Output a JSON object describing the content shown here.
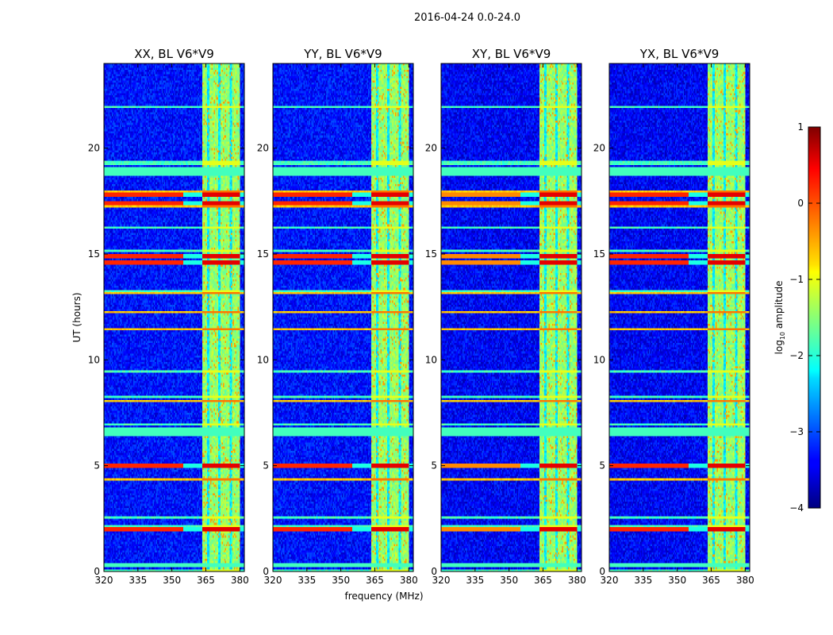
{
  "chart_data": {
    "type": "heatmap",
    "title": "2016-04-24 0.0-24.0",
    "xlabel": "frequency (MHz)",
    "ylabel": "UT (hours)",
    "xlim": [
      320,
      382
    ],
    "ylim": [
      0,
      24
    ],
    "x_ticks": [
      320,
      335,
      350,
      365,
      380
    ],
    "y_ticks": [
      0,
      5,
      10,
      15,
      20
    ],
    "panels": [
      {
        "title": "XX, BL V6*V9"
      },
      {
        "title": "YY, BL V6*V9"
      },
      {
        "title": "XY, BL V6*V9"
      },
      {
        "title": "YX, BL V6*V9"
      }
    ],
    "colorbar": {
      "label": "log",
      "label_sub": "10",
      "label_tail": " amplitude",
      "range": [
        -4,
        1
      ],
      "ticks": [
        1,
        0,
        -1,
        -2,
        -3,
        -4
      ],
      "tick_labels": [
        "1",
        "0",
        "−1",
        "−2",
        "−3",
        "−4"
      ]
    },
    "features": {
      "rfi_band_mhz": [
        363.5,
        380
      ],
      "rfi_band_columns_mhz": [
        366,
        371,
        376
      ],
      "strong_time_hours": [
        17.4,
        17.8,
        14.6,
        14.9,
        5.0,
        2.0
      ],
      "flagged_time_hours": [
        18.8,
        19.0,
        6.5,
        6.7,
        0.3
      ]
    }
  }
}
